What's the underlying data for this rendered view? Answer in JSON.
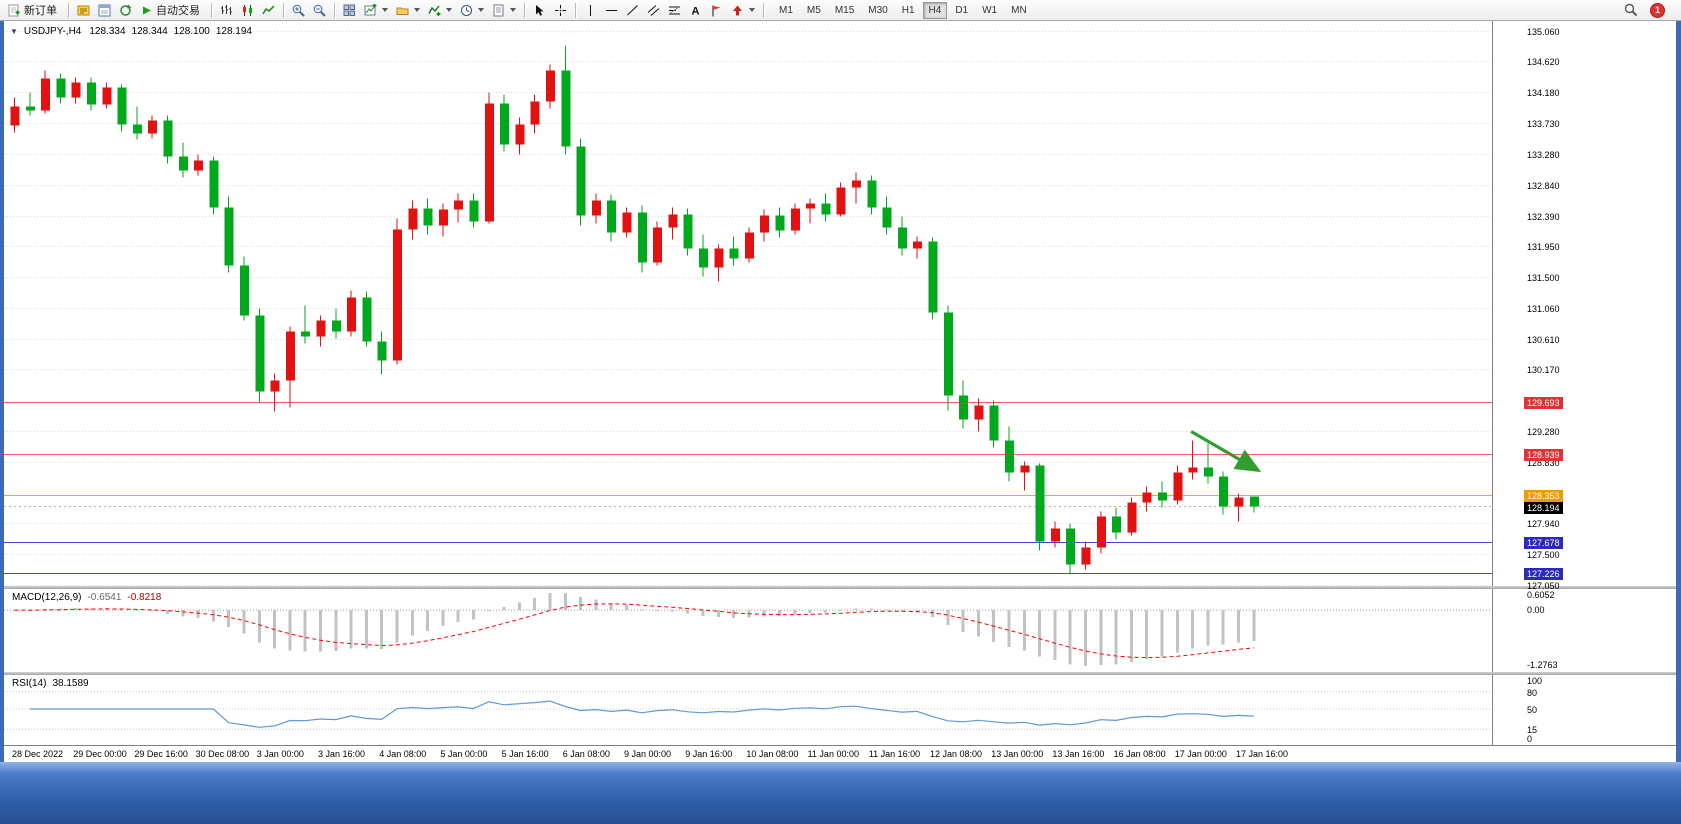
{
  "toolbar": {
    "new_order_label": "新订单",
    "autotrade_label": "自动交易",
    "timeframes": [
      "M1",
      "M5",
      "M15",
      "M30",
      "H1",
      "H4",
      "D1",
      "W1",
      "MN"
    ],
    "active_timeframe": "H4",
    "badge_count": "1"
  },
  "chart": {
    "symbol_period": "USDJPY-,H4",
    "ohlc_readout": {
      "open": "128.334",
      "high": "128.344",
      "low": "128.100",
      "close": "128.194"
    },
    "price_ticks": [
      "135.060",
      "134.620",
      "134.180",
      "133.730",
      "133.280",
      "132.840",
      "132.390",
      "131.950",
      "131.500",
      "131.060",
      "130.610",
      "130.170",
      "129.280",
      "128.830",
      "127.940",
      "127.500",
      "127.050"
    ],
    "hlines": [
      {
        "label": "129.693",
        "price": 129.693,
        "line": "#ff5a5a",
        "tag": "#e03434"
      },
      {
        "label": "128.939",
        "price": 128.939,
        "line": "#ff5a5a",
        "tag": "#e03434"
      },
      {
        "label": "128.353",
        "price": 128.353,
        "line": "#ffa800",
        "tag": "#f29b00"
      },
      {
        "label": "127.678",
        "price": 127.678,
        "line": "#4444cc",
        "tag": "#2b2bbb"
      },
      {
        "label": "127.226",
        "price": 127.226,
        "line": "#4444cc",
        "tag": "#2b2bbb"
      }
    ],
    "current_price": {
      "value": "128.194",
      "tag": "#000000"
    },
    "arrow": {
      "from_bar": 77.2,
      "from_price": 129.28,
      "to_bar": 81.6,
      "to_price": 128.72,
      "color": "#2f9e2f"
    },
    "colors": {
      "bull": "#e01212",
      "bear": "#00a81e",
      "grid": "#dcdcdc",
      "bid_line": "#b4b4b4",
      "macd_bar": "#c2c2c2",
      "macd_signal": "#ff0000",
      "rsi_line": "#5f9ad6"
    },
    "candles": [
      [
        133.7,
        134.1,
        133.6,
        133.98
      ],
      [
        133.98,
        134.18,
        133.85,
        133.92
      ],
      [
        133.92,
        134.5,
        133.88,
        134.38
      ],
      [
        134.38,
        134.45,
        134.02,
        134.1
      ],
      [
        134.1,
        134.4,
        134.02,
        134.32
      ],
      [
        134.32,
        134.4,
        133.92,
        134.0
      ],
      [
        134.0,
        134.32,
        133.95,
        134.25
      ],
      [
        134.25,
        134.3,
        133.62,
        133.72
      ],
      [
        133.72,
        133.98,
        133.5,
        133.58
      ],
      [
        133.58,
        133.85,
        133.52,
        133.78
      ],
      [
        133.78,
        133.85,
        133.15,
        133.25
      ],
      [
        133.25,
        133.45,
        132.95,
        133.05
      ],
      [
        133.05,
        133.28,
        132.98,
        133.2
      ],
      [
        133.2,
        133.25,
        132.42,
        132.52
      ],
      [
        132.52,
        132.68,
        131.58,
        131.68
      ],
      [
        131.68,
        131.8,
        130.88,
        130.95
      ],
      [
        130.95,
        131.05,
        129.7,
        129.85
      ],
      [
        129.85,
        130.12,
        129.56,
        130.02
      ],
      [
        130.02,
        130.8,
        129.62,
        130.72
      ],
      [
        130.72,
        131.1,
        130.55,
        130.65
      ],
      [
        130.65,
        130.95,
        130.5,
        130.88
      ],
      [
        130.88,
        131.05,
        130.62,
        130.72
      ],
      [
        130.72,
        131.32,
        130.65,
        131.22
      ],
      [
        131.22,
        131.3,
        130.5,
        130.58
      ],
      [
        130.58,
        130.72,
        130.1,
        130.3
      ],
      [
        130.3,
        132.35,
        130.25,
        132.2
      ],
      [
        132.2,
        132.62,
        132.05,
        132.5
      ],
      [
        132.5,
        132.65,
        132.12,
        132.25
      ],
      [
        132.25,
        132.58,
        132.1,
        132.48
      ],
      [
        132.48,
        132.72,
        132.3,
        132.62
      ],
      [
        132.62,
        132.72,
        132.22,
        132.32
      ],
      [
        132.32,
        134.18,
        132.28,
        134.02
      ],
      [
        134.02,
        134.15,
        133.32,
        133.42
      ],
      [
        133.42,
        133.82,
        133.28,
        133.72
      ],
      [
        133.72,
        134.15,
        133.58,
        134.05
      ],
      [
        134.05,
        134.58,
        133.95,
        134.5
      ],
      [
        134.5,
        134.86,
        133.28,
        133.4
      ],
      [
        133.4,
        133.52,
        132.25,
        132.4
      ],
      [
        132.4,
        132.72,
        132.28,
        132.62
      ],
      [
        132.62,
        132.7,
        132.02,
        132.15
      ],
      [
        132.15,
        132.52,
        132.08,
        132.45
      ],
      [
        132.45,
        132.55,
        131.58,
        131.72
      ],
      [
        131.72,
        132.32,
        131.68,
        132.22
      ],
      [
        132.22,
        132.52,
        132.05,
        132.42
      ],
      [
        132.42,
        132.5,
        131.82,
        131.92
      ],
      [
        131.92,
        132.12,
        131.52,
        131.65
      ],
      [
        131.65,
        131.98,
        131.45,
        131.92
      ],
      [
        131.92,
        132.1,
        131.68,
        131.78
      ],
      [
        131.78,
        132.22,
        131.72,
        132.15
      ],
      [
        132.15,
        132.48,
        132.02,
        132.4
      ],
      [
        132.4,
        132.52,
        132.08,
        132.18
      ],
      [
        132.18,
        132.58,
        132.12,
        132.5
      ],
      [
        132.5,
        132.65,
        132.28,
        132.58
      ],
      [
        132.58,
        132.72,
        132.32,
        132.42
      ],
      [
        132.42,
        132.88,
        132.38,
        132.8
      ],
      [
        132.8,
        133.02,
        132.58,
        132.9
      ],
      [
        132.9,
        132.98,
        132.42,
        132.52
      ],
      [
        132.52,
        132.68,
        132.12,
        132.22
      ],
      [
        132.22,
        132.38,
        131.82,
        131.92
      ],
      [
        131.92,
        132.1,
        131.78,
        132.02
      ],
      [
        132.02,
        132.08,
        130.9,
        131.0
      ],
      [
        131.0,
        131.1,
        129.58,
        129.8
      ],
      [
        129.8,
        130.02,
        129.32,
        129.45
      ],
      [
        129.45,
        129.75,
        129.28,
        129.65
      ],
      [
        129.65,
        129.72,
        129.05,
        129.15
      ],
      [
        129.15,
        129.35,
        128.55,
        128.68
      ],
      [
        128.68,
        128.85,
        128.42,
        128.78
      ],
      [
        128.78,
        128.82,
        127.55,
        127.68
      ],
      [
        127.68,
        127.98,
        127.6,
        127.88
      ],
      [
        127.88,
        127.95,
        127.21,
        127.35
      ],
      [
        127.35,
        127.68,
        127.28,
        127.6
      ],
      [
        127.6,
        128.12,
        127.52,
        128.05
      ],
      [
        128.05,
        128.18,
        127.72,
        127.82
      ],
      [
        127.82,
        128.32,
        127.78,
        128.25
      ],
      [
        128.25,
        128.48,
        128.12,
        128.4
      ],
      [
        128.4,
        128.55,
        128.18,
        128.28
      ],
      [
        128.28,
        128.78,
        128.22,
        128.68
      ],
      [
        128.68,
        129.15,
        128.58,
        128.75
      ],
      [
        128.75,
        129.1,
        128.52,
        128.62
      ],
      [
        128.62,
        128.7,
        128.08,
        128.2
      ],
      [
        128.2,
        128.38,
        127.98,
        128.33
      ],
      [
        128.334,
        128.344,
        128.1,
        128.194
      ]
    ]
  },
  "macd": {
    "label": "MACD(12,26,9)",
    "value1": "-0.6541",
    "value2": "-0.8218",
    "ticks": [
      "0.6052",
      "0.00",
      "-1.2763"
    ]
  },
  "rsi": {
    "label": "RSI(14)",
    "value": "38.1589",
    "ticks": [
      "100",
      "80",
      "50",
      "15",
      "0"
    ],
    "levels": [
      80,
      50,
      15
    ]
  },
  "time_axis": {
    "labels": [
      "28 Dec 2022",
      "29 Dec 00:00",
      "29 Dec 16:00",
      "30 Dec 08:00",
      "3 Jan 00:00",
      "3 Jan 16:00",
      "4 Jan 08:00",
      "5 Jan 00:00",
      "5 Jan 16:00",
      "6 Jan 08:00",
      "9 Jan 00:00",
      "9 Jan 16:00",
      "10 Jan 08:00",
      "11 Jan 00:00",
      "11 Jan 16:00",
      "12 Jan 08:00",
      "13 Jan 00:00",
      "13 Jan 16:00",
      "16 Jan 08:00",
      "17 Jan 00:00",
      "17 Jan 16:00"
    ]
  }
}
